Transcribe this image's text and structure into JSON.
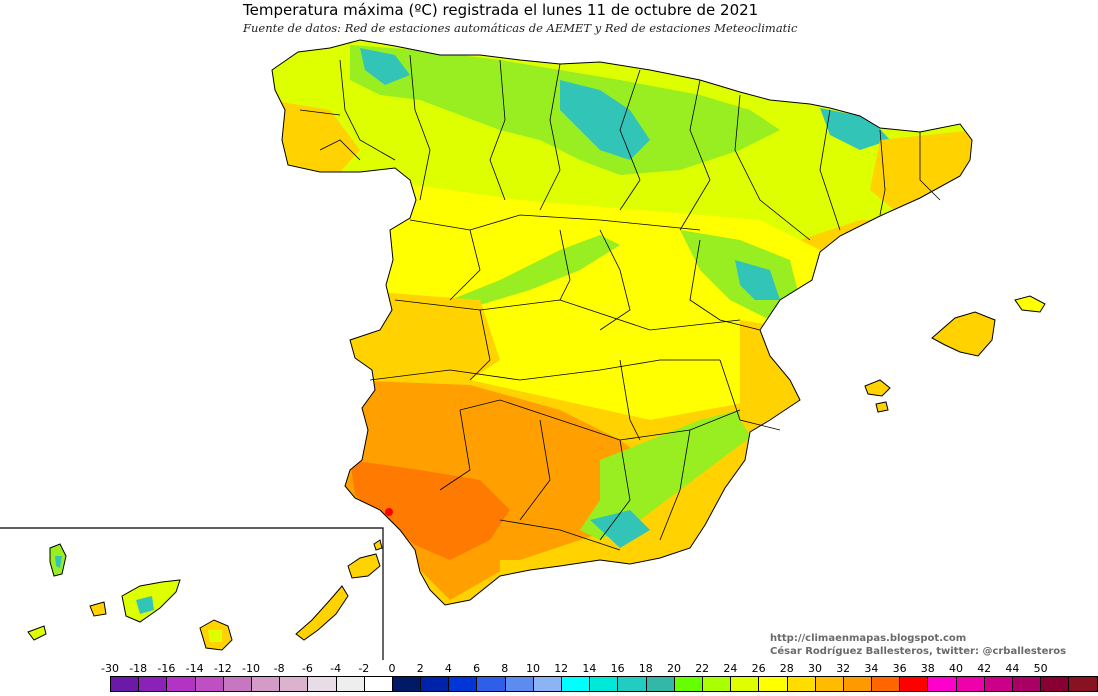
{
  "header": {
    "title": "Temperatura máxima (ºC) registrada el lunes 11 de octubre de 2021",
    "subtitle": "Fuente de datos: Red de estaciones automáticas de AEMET y Red de estaciones Meteoclimatic"
  },
  "credits": {
    "line1": "http://climaenmapas.blogspot.com",
    "line2": "César Rodríguez Ballesteros, twitter: @crballesteros"
  },
  "legend": {
    "labels": [
      "-30",
      "-18",
      "-16",
      "-14",
      "-12",
      "-10",
      "-8",
      "-6",
      "-4",
      "-2",
      "0",
      "2",
      "4",
      "6",
      "8",
      "10",
      "12",
      "14",
      "16",
      "18",
      "20",
      "22",
      "24",
      "26",
      "28",
      "30",
      "32",
      "34",
      "36",
      "38",
      "40",
      "42",
      "44",
      "50"
    ],
    "colors": [
      "#6b1aa8",
      "#8a22b8",
      "#b233c4",
      "#c04fc4",
      "#c777c0",
      "#d49ac8",
      "#dbb3cf",
      "#e8dde6",
      "#eeeeee",
      "#ffffff",
      "#001a66",
      "#0022a8",
      "#0036d8",
      "#2f5ee8",
      "#5c8cf0",
      "#8cb4f4",
      "#00ffff",
      "#00e8d8",
      "#22ccc0",
      "#33b8a8",
      "#66ff00",
      "#aaff00",
      "#ddff00",
      "#ffff00",
      "#ffdd00",
      "#ffbb00",
      "#ff9900",
      "#ff6600",
      "#ff0000",
      "#ff00cc",
      "#ee00aa",
      "#cc0088",
      "#aa0066",
      "#880033",
      "#881122"
    ],
    "color_roles": {
      "cool": "#33c4b8",
      "mild": "#99ee22",
      "warm_yellow": "#ffff00",
      "gold": "#ffd200",
      "orange": "#ffa000",
      "hot": "#ff7a00",
      "extreme": "#ff0000"
    }
  },
  "map": {
    "region": "Península Ibérica, Baleares y Canarias",
    "max_value_marker_color": "#ff0000"
  }
}
